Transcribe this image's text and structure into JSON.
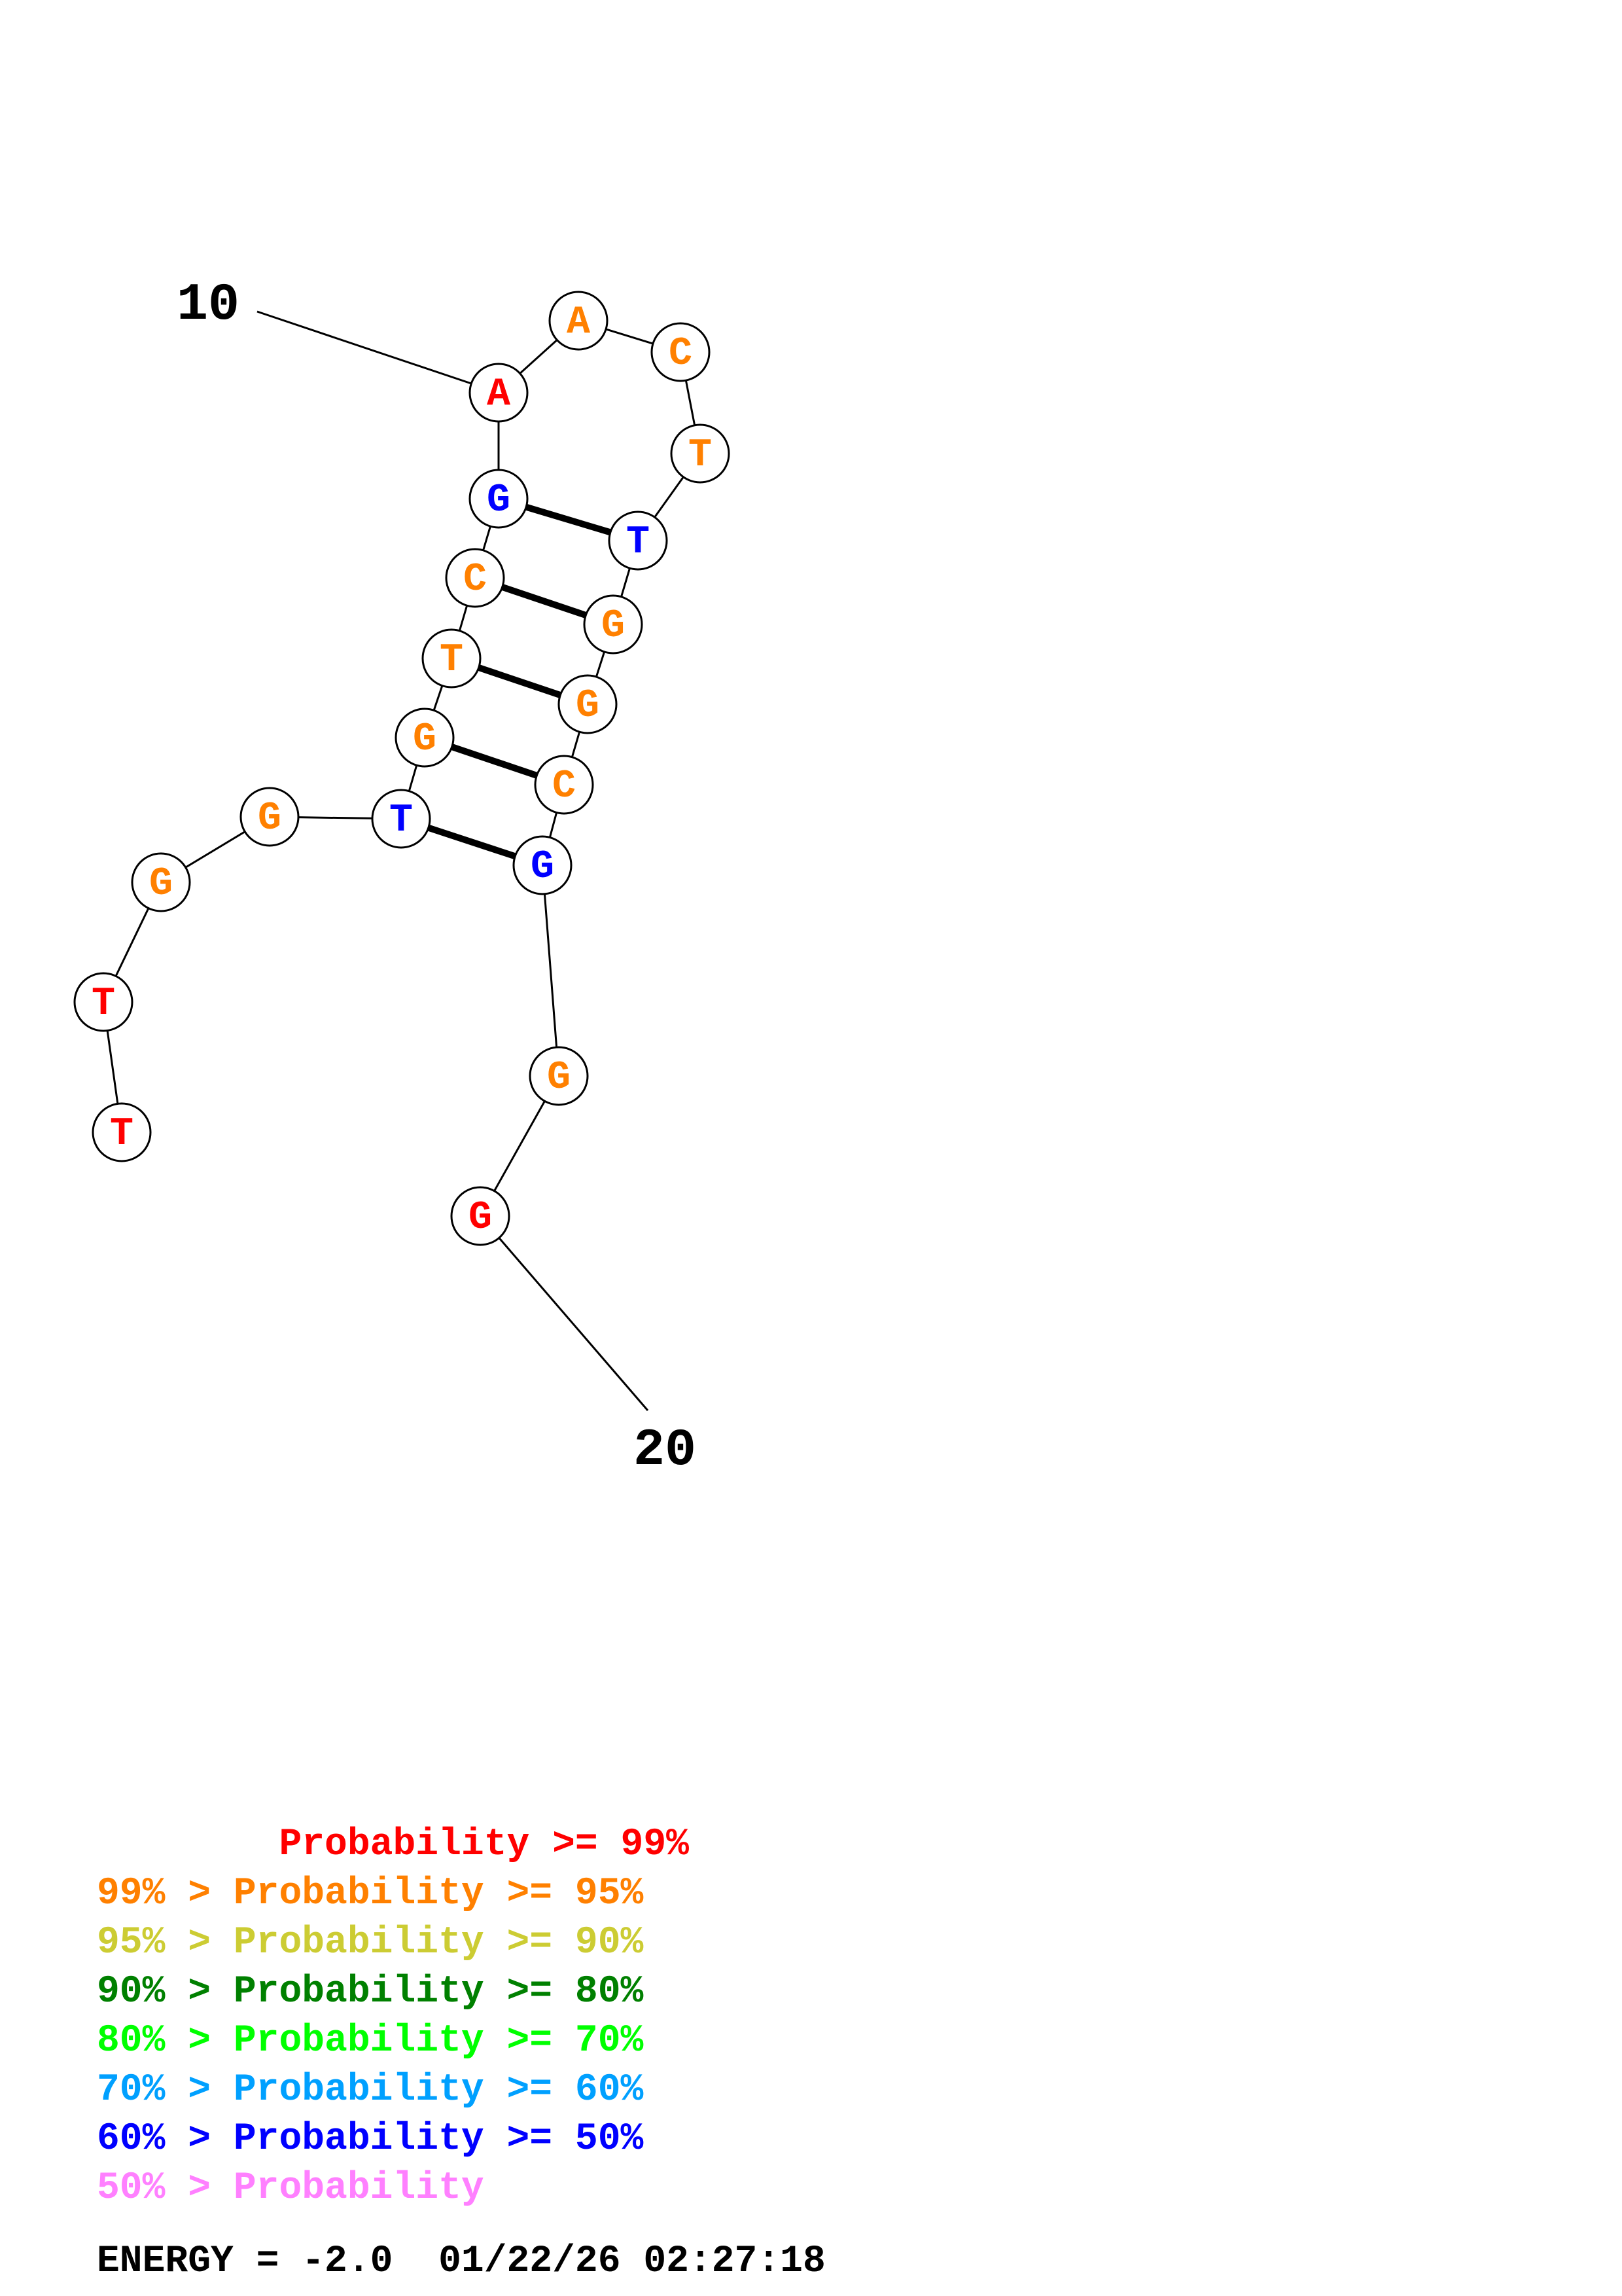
{
  "colors": {
    "p99": "#ff0000",
    "p95": "#ff8000",
    "p90": "#cccc33",
    "p80": "#008000",
    "p70": "#00ff00",
    "p60": "#00a0ff",
    "p50": "#0000ff",
    "plow": "#ff80ff"
  },
  "nucleotides": [
    {
      "base": "T",
      "color": "#ff0000"
    },
    {
      "base": "T",
      "color": "#ff0000"
    },
    {
      "base": "G",
      "color": "#ff8000"
    },
    {
      "base": "G",
      "color": "#ff8000"
    },
    {
      "base": "T",
      "color": "#0000ff"
    },
    {
      "base": "G",
      "color": "#ff8000"
    },
    {
      "base": "T",
      "color": "#ff8000"
    },
    {
      "base": "C",
      "color": "#ff8000"
    },
    {
      "base": "G",
      "color": "#0000ff"
    },
    {
      "base": "A",
      "color": "#ff0000"
    },
    {
      "base": "A",
      "color": "#ff8000"
    },
    {
      "base": "C",
      "color": "#ff8000"
    },
    {
      "base": "T",
      "color": "#ff8000"
    },
    {
      "base": "T",
      "color": "#0000ff"
    },
    {
      "base": "G",
      "color": "#ff8000"
    },
    {
      "base": "G",
      "color": "#ff8000"
    },
    {
      "base": "C",
      "color": "#ff8000"
    },
    {
      "base": "G",
      "color": "#0000ff"
    },
    {
      "base": "G",
      "color": "#ff8000"
    },
    {
      "base": "G",
      "color": "#ff0000"
    }
  ],
  "pairs": [
    [
      5,
      18
    ],
    [
      6,
      17
    ],
    [
      7,
      16
    ],
    [
      8,
      15
    ],
    [
      9,
      14
    ]
  ],
  "number_labels": [
    {
      "text": "10",
      "index": 10
    },
    {
      "text": "20",
      "index": 20
    }
  ],
  "legend": [
    {
      "text": "        Probability >= 99%",
      "color": "#ff0000"
    },
    {
      "text": "99% > Probability >= 95%",
      "color": "#ff8000"
    },
    {
      "text": "95% > Probability >= 90%",
      "color": "#cccc33"
    },
    {
      "text": "90% > Probability >= 80%",
      "color": "#008000"
    },
    {
      "text": "80% > Probability >= 70%",
      "color": "#00ff00"
    },
    {
      "text": "70% > Probability >= 60%",
      "color": "#00a0ff"
    },
    {
      "text": "60% > Probability >= 50%",
      "color": "#0000ff"
    },
    {
      "text": "50% > Probability",
      "color": "#ff80ff"
    }
  ],
  "footer": "ENERGY = -2.0  01/22/26 02:27:18"
}
